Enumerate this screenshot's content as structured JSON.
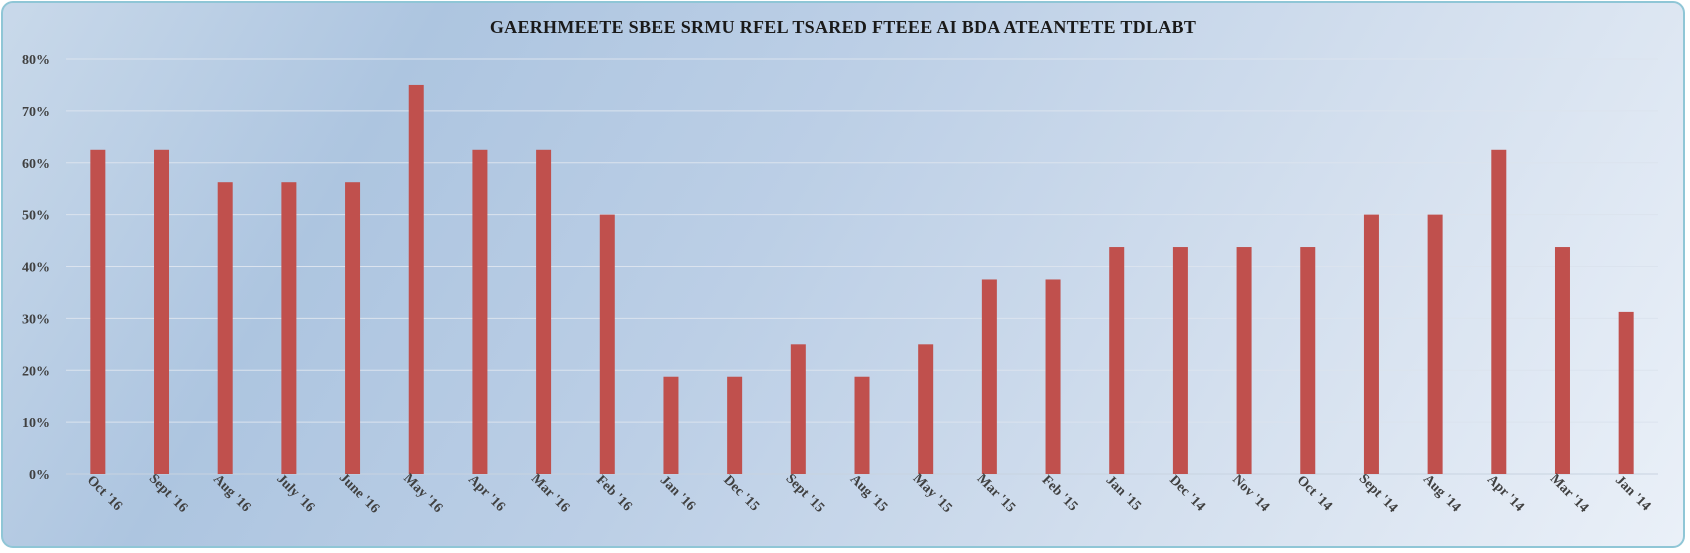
{
  "chart_data": {
    "type": "bar",
    "title": "GAERHMEETE SBEE SRMU RFEL TSARED FTEEE AI BDA ATEANTETE TDLABT",
    "xlabel": "",
    "ylabel": "",
    "ylim": [
      0,
      80
    ],
    "y_ticks": [
      "0%",
      "10%",
      "20%",
      "30%",
      "40%",
      "50%",
      "60%",
      "70%",
      "80%"
    ],
    "grid": true,
    "legend": "none",
    "bar_color": "#c0504d",
    "categories": [
      "Oct '16",
      "Sept '16",
      "Aug '16",
      "July '16",
      "June '16",
      "May '16",
      "Apr '16",
      "Mar '16",
      "Feb '16",
      "Jan '16",
      "Dec '15",
      "Sept '15",
      "Aug '15",
      "May '15",
      "Mar '15",
      "Feb '15",
      "Jan '15",
      "Dec '14",
      "Nov '14",
      "Oct '14",
      "Sept '14",
      "Aug '14",
      "Apr '14",
      "Mar '14",
      "Jan '14"
    ],
    "values": [
      62.5,
      62.5,
      56.25,
      56.25,
      56.25,
      75,
      62.5,
      62.5,
      50,
      18.75,
      18.75,
      25,
      18.75,
      25,
      37.5,
      37.5,
      43.75,
      43.75,
      43.75,
      43.75,
      50,
      50,
      62.5,
      43.75,
      31.25
    ]
  }
}
